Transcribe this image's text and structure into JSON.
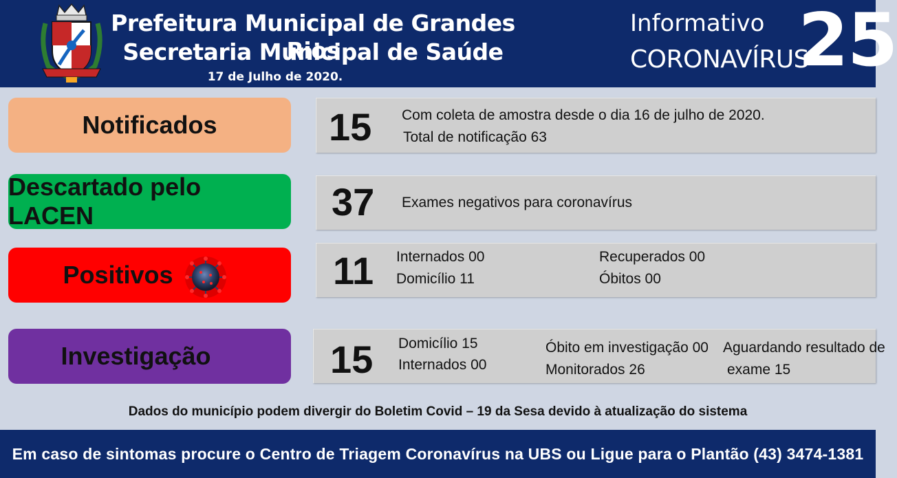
{
  "header": {
    "title": "Prefeitura Municipal de Grandes Rios",
    "subtitle": "Secretaria Municipal de Saúde",
    "date": "17 de Julho de 2020.",
    "info_label": "Informativo",
    "corona_label": "CORONAVÍRUS",
    "issue_number": "25"
  },
  "sections": {
    "notificados": {
      "label": "Notificados",
      "color": "#f4b183",
      "number": "15",
      "line1": "Com coleta de amostra desde o dia 16 de julho de 2020.",
      "line2": "Total de notificação 63"
    },
    "descartado": {
      "label": "Descartado pelo LACEN",
      "color": "#00b050",
      "number": "37",
      "line1": "Exames negativos para coronavírus"
    },
    "positivos": {
      "label": "Positivos",
      "color": "#ff0000",
      "number": "11",
      "internados": "Internados 00",
      "domicilio": "Domicílio 11",
      "recuperados": "Recuperados 00",
      "obitos": "Óbitos 00"
    },
    "investigacao": {
      "label": "Investigação",
      "color": "#7030a0",
      "number": "15",
      "domicilio": "Domicílio 15",
      "internados": "Internados 00",
      "obito": "Óbito em investigação 00",
      "monitorados": "Monitorados 26",
      "aguardando1": "Aguardando resultado de",
      "aguardando2": "exame 15"
    }
  },
  "note": "Dados do município podem divergir do Boletim Covid – 19 da Sesa devido à atualização do sistema",
  "footer": "Em caso de sintomas procure o Centro de Triagem Coronavírus na UBS ou Ligue para o Plantão (43) 3474-1381",
  "colors": {
    "header_bg": "#0e2a6b",
    "page_bg": "#cfd6e3",
    "box_bg": "#cfcfcf"
  },
  "icons": {
    "crest": "municipal-coat-of-arms-icon",
    "virus": "coronavirus-icon"
  }
}
